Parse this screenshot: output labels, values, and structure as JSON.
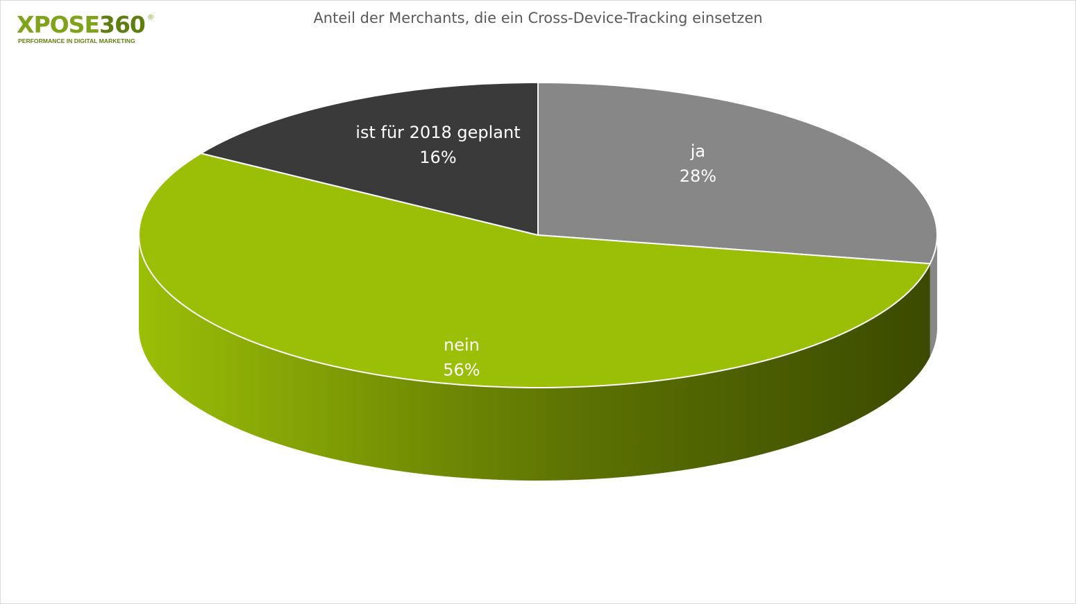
{
  "brand": {
    "name_light": "XPOSE",
    "name_dark": "360",
    "registered_mark": "®",
    "tagline": "PERFORMANCE IN DIGITAL MARKETING"
  },
  "chart_data": {
    "type": "pie",
    "title": "Anteil der Merchants, die ein Cross-Device-Tracking einsetzen",
    "slices": [
      {
        "label": "ja",
        "value": 28,
        "value_label": "28%",
        "color": "#878787"
      },
      {
        "label": "nein",
        "value": 56,
        "value_label": "56%",
        "color": "#9bbe06"
      },
      {
        "label": "ist für 2018 geplant",
        "value": 16,
        "value_label": "16%",
        "color": "#3a3a3a"
      }
    ],
    "start_angle_deg": 0,
    "direction": "clockwise",
    "style": "3d"
  }
}
